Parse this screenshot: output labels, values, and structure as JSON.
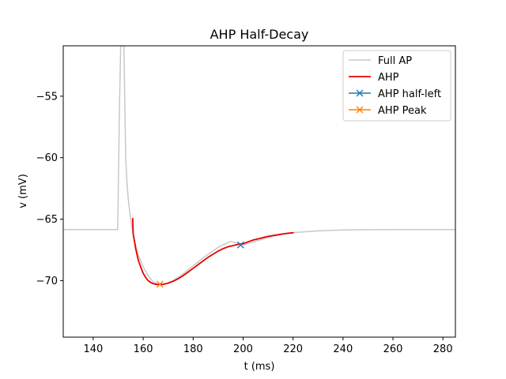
{
  "chart_data": {
    "type": "line",
    "title": "AHP Half-Decay",
    "xlabel": "t (ms)",
    "ylabel": "v (mV)",
    "xlim": [
      128,
      285
    ],
    "ylim": [
      -74.6,
      -50.9
    ],
    "xticks": [
      140,
      160,
      180,
      200,
      220,
      240,
      260,
      280
    ],
    "yticks": [
      -55,
      -60,
      -65,
      -70
    ],
    "xtick_labels": [
      "140",
      "160",
      "180",
      "200",
      "220",
      "240",
      "260",
      "280"
    ],
    "ytick_labels": [
      "−55",
      "−60",
      "−65",
      "−70"
    ],
    "legend_position": "top-right",
    "series": [
      {
        "name": "Full AP",
        "kind": "line",
        "color": "#c8c8c8",
        "x": [
          128,
          149.8,
          150,
          150.5,
          151,
          151.5,
          152.0,
          152.3,
          152.6,
          153.0,
          153.5,
          154.0,
          154.5,
          155.0,
          155.5,
          156,
          158,
          160,
          162,
          164,
          166,
          168,
          170,
          172,
          175,
          180,
          185,
          190,
          195,
          200,
          205,
          210,
          215,
          220,
          230,
          240,
          250,
          260,
          270,
          285
        ],
        "y": [
          -65.85,
          -65.85,
          -63.0,
          -56.0,
          -50.9,
          -50.9,
          -50.9,
          -50.9,
          -55.0,
          -60.0,
          -62.0,
          -63.3,
          -64.2,
          -65.0,
          -65.7,
          -66.3,
          -67.9,
          -68.9,
          -69.6,
          -70.1,
          -70.3,
          -70.3,
          -70.2,
          -70.0,
          -69.6,
          -68.8,
          -68.0,
          -67.3,
          -66.8,
          -67.1,
          -66.8,
          -66.5,
          -66.25,
          -66.1,
          -65.95,
          -65.88,
          -65.86,
          -65.85,
          -65.85,
          -65.85
        ]
      },
      {
        "name": "AHP",
        "kind": "line",
        "color": "#e80000",
        "x": [
          155.8,
          156,
          157,
          158,
          159,
          160,
          161,
          162,
          163,
          164,
          165,
          166,
          167,
          168,
          169,
          170,
          172,
          174,
          176,
          178,
          180,
          182,
          184,
          186,
          188,
          190,
          192,
          194,
          196,
          198,
          200,
          202,
          204,
          206,
          208,
          210,
          212,
          214,
          216,
          218,
          220.3
        ],
        "y": [
          -64.9,
          -66.2,
          -67.4,
          -68.3,
          -68.9,
          -69.4,
          -69.75,
          -70.0,
          -70.15,
          -70.25,
          -70.3,
          -70.32,
          -70.32,
          -70.3,
          -70.26,
          -70.2,
          -70.05,
          -69.85,
          -69.6,
          -69.3,
          -69.0,
          -68.7,
          -68.4,
          -68.1,
          -67.85,
          -67.6,
          -67.4,
          -67.25,
          -67.15,
          -67.05,
          -67.0,
          -66.85,
          -66.7,
          -66.6,
          -66.5,
          -66.4,
          -66.33,
          -66.27,
          -66.2,
          -66.15,
          -66.1
        ]
      },
      {
        "name": "AHP half-left",
        "kind": "marker",
        "color": "#1f77b4",
        "x": [
          199
        ],
        "y": [
          -67.1
        ]
      },
      {
        "name": "AHP Peak",
        "kind": "marker",
        "color": "#ff7f0e",
        "x": [
          166.7
        ],
        "y": [
          -70.3
        ]
      }
    ]
  }
}
